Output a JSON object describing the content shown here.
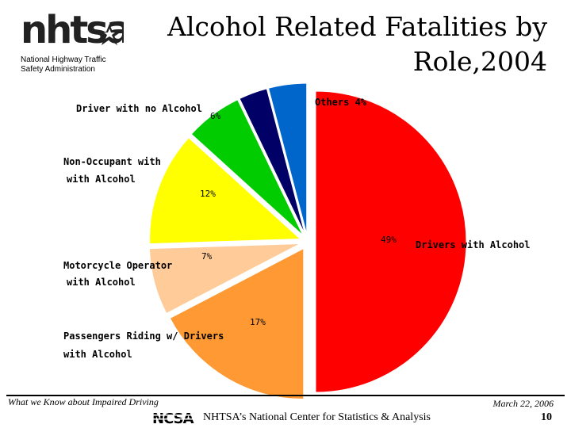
{
  "header": {
    "logo_icon": "nhtsa-logo-icon",
    "agency_line1": "National Highway Traffic",
    "agency_line2": "Safety Administration",
    "title_line1": "Alcohol Related Fatalities by",
    "title_line2": "Role,2004"
  },
  "chart_data": {
    "type": "pie",
    "title": "Alcohol Related Fatalities by Role,2004",
    "slices": [
      {
        "label": "Drivers with Alcohol",
        "value": 49,
        "value_label": "49%",
        "color": "#ff0000"
      },
      {
        "label": "Passengers Riding w/ Drivers with Alcohol",
        "value": 17,
        "value_label": "17%",
        "color": "#ff9933"
      },
      {
        "label": "Motorcycle Operator with Alcohol",
        "value": 7,
        "value_label": "7%",
        "color": "#ffcc99"
      },
      {
        "label": "Non-Occupant with with Alcohol",
        "value": 12,
        "value_label": "12%",
        "color": "#ffff00"
      },
      {
        "label": "Driver with no Alcohol",
        "value": 6,
        "value_label": "6%",
        "color": "#00cc00"
      },
      {
        "label": "",
        "value": 3,
        "value_label": "",
        "color": "#000066"
      },
      {
        "label": "Others",
        "value": 4,
        "value_label": "4%",
        "color": "#0066cc"
      }
    ],
    "legend": "none"
  },
  "labels": {
    "drivers_alcohol": "Drivers with Alcohol",
    "passengers_l1": "Passengers Riding w/ Drivers",
    "passengers_l2": "with Alcohol",
    "motorcycle_l1": "Motorcycle Operator",
    "motorcycle_l2": "with Alcohol",
    "nonoccupant_l1": "Non-Occupant with",
    "nonoccupant_l2": "with Alcohol",
    "no_alcohol": "Driver with no Alcohol",
    "others": "Others 4%"
  },
  "percents": {
    "drivers": "49%",
    "passengers": "17%",
    "motorcycle": "7%",
    "nonoccupant": "12%",
    "no_alcohol": "6%"
  },
  "footer": {
    "left_text": "What we Know about Impaired Driving",
    "date": "March 22, 2006",
    "ncsa_logo_icon": "ncsa-logo-icon",
    "center_text": "NHTSA’s National Center for Statistics & Analysis",
    "page_number": "10"
  }
}
